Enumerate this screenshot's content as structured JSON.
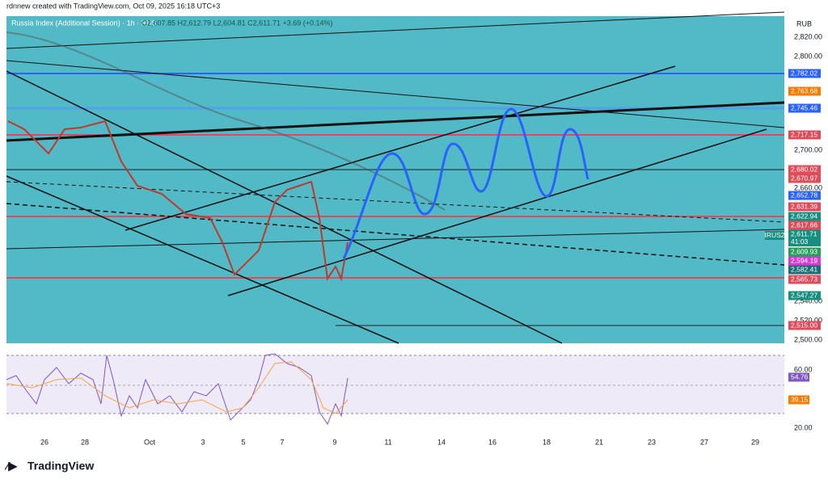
{
  "header": {
    "credit": "rdnnew created with TradingView.com, Oct 09, 2025 16:18 UTC+3",
    "symbol": "Russia Index (Additional Session) · 1h · RUS",
    "ohlc": "O2,607.85 H2,612.79 L2,604.81 C2,611.71 +3.69 (+0.14%)"
  },
  "price_axis": {
    "currency": "RUB",
    "ticks": [
      "2,820.00",
      "2,800.00",
      "2,700.00",
      "2,660.00",
      "2,540.00",
      "2,520.00",
      "2,500.00"
    ],
    "tags": [
      "2,782.02",
      "2,763.68",
      "2,745.46",
      "2,717.15",
      "2,680.02",
      "2,670.97",
      "2,652.78",
      "2,631.39",
      "2,622.94",
      "2,617.66",
      "2,611.71",
      "2,609.93",
      "2,594.19",
      "2,582.41",
      "2,565.73",
      "2,547.27",
      "2,515.00"
    ],
    "countdown": "41:03",
    "symbol_tag": "IRUS2"
  },
  "rsi_axis": {
    "ticks": [
      "60.00",
      "20.00"
    ],
    "tags": [
      "54.76",
      "39.15"
    ]
  },
  "time_axis": [
    "26",
    "28",
    "Oct",
    "3",
    "5",
    "7",
    "9",
    "11",
    "14",
    "16",
    "18",
    "21",
    "23",
    "27",
    "29"
  ],
  "footer": {
    "logo": "TradingView"
  }
}
